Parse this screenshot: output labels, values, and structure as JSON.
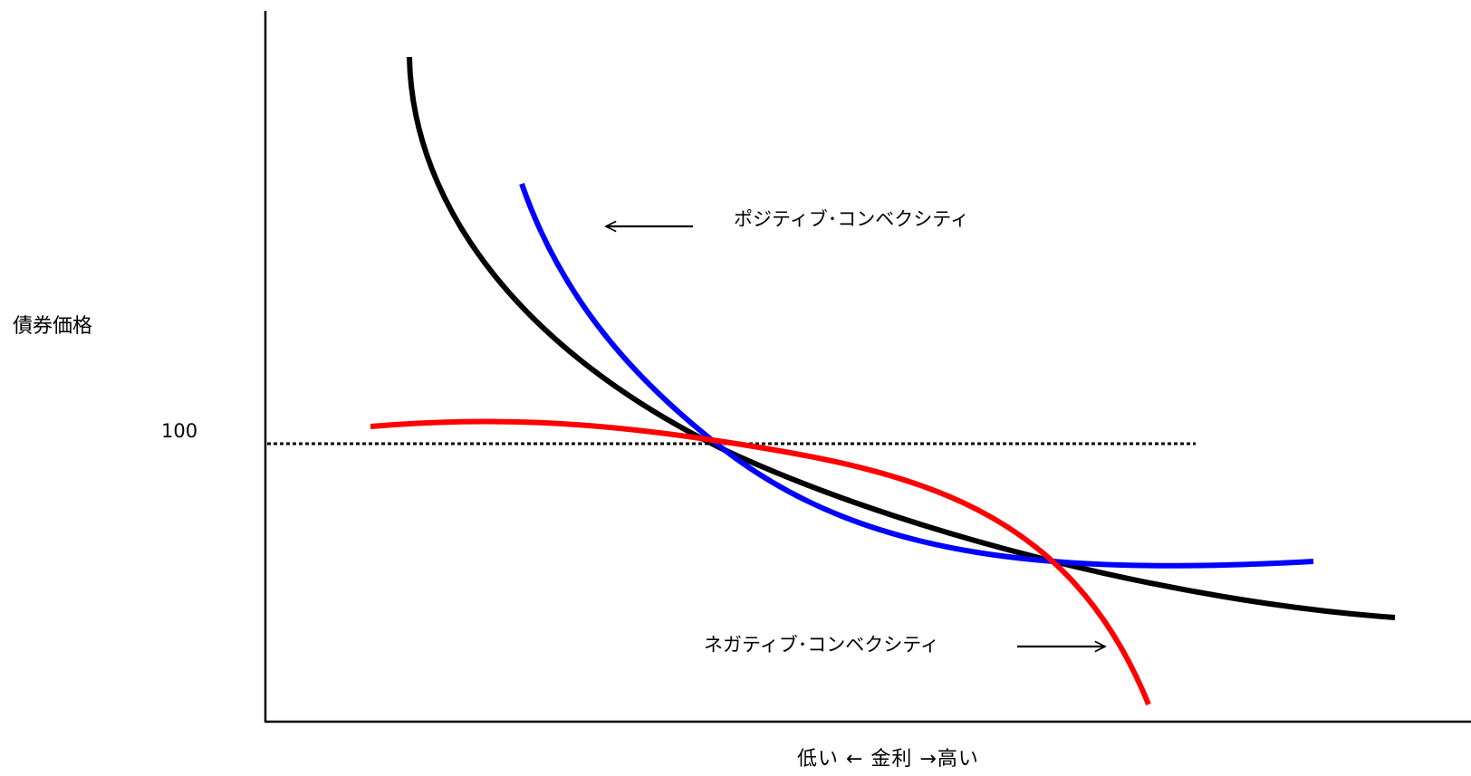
{
  "labels": {
    "y_axis": "債券価格",
    "x_axis": "低い ← 金利 →高い",
    "reference_value": "100",
    "positive": "ポジティブ･コンベクシティ",
    "negative": "ネガティブ･コンベクシティ"
  },
  "colors": {
    "axis": "#000000",
    "standard_curve": "#000000",
    "positive_curve": "#0000ff",
    "negative_curve": "#ff0000",
    "reference_line": "#000000"
  }
}
